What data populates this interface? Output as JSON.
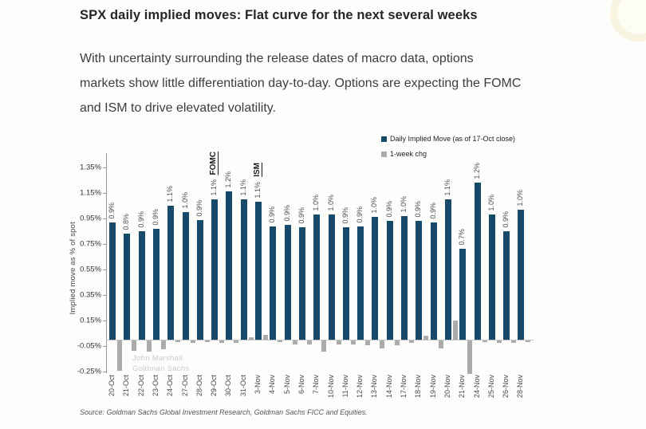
{
  "page": {
    "title": "SPX daily implied moves: Flat curve for the next several weeks",
    "paragraph_lines": [
      "With uncertainty surrounding the release dates of macro data, options",
      "markets show little differentiation day-to-day. Options are expecting the FOMC",
      "and ISM to drive elevated volatility."
    ]
  },
  "chart_data": {
    "type": "bar",
    "title": "",
    "xlabel": "",
    "ylabel": "Implied move as % of spot",
    "ylim": [
      -0.3,
      1.45
    ],
    "yticks": [
      "1.35%",
      "1.15%",
      "0.95%",
      "0.75%",
      "0.55%",
      "0.35%",
      "0.15%",
      "-0.05%",
      "-0.25%"
    ],
    "ytick_values": [
      1.35,
      1.15,
      0.95,
      0.75,
      0.55,
      0.35,
      0.15,
      -0.05,
      -0.25
    ],
    "grid": false,
    "legend_position": "top-right",
    "categories": [
      "20-Oct",
      "21-Oct",
      "22-Oct",
      "23-Oct",
      "24-Oct",
      "27-Oct",
      "28-Oct",
      "29-Oct",
      "30-Oct",
      "31-Oct",
      "3-Nov",
      "4-Nov",
      "5-Nov",
      "6-Nov",
      "7-Nov",
      "10-Nov",
      "11-Nov",
      "12-Nov",
      "13-Nov",
      "14-Nov",
      "17-Nov",
      "18-Nov",
      "19-Nov",
      "20-Nov",
      "21-Nov",
      "24-Nov",
      "25-Nov",
      "26-Nov",
      "28-Nov"
    ],
    "series": [
      {
        "name": "Daily Implied Move (as of 17-Oct close)",
        "color": "#17496B",
        "values": [
          0.92,
          0.83,
          0.85,
          0.87,
          1.05,
          1.0,
          0.94,
          1.1,
          1.16,
          1.1,
          1.08,
          0.89,
          0.9,
          0.88,
          0.98,
          0.98,
          0.88,
          0.89,
          0.96,
          0.93,
          0.97,
          0.93,
          0.92,
          1.1,
          0.71,
          1.23,
          0.98,
          0.85,
          1.02
        ],
        "labels": [
          "0.9%",
          "0.8%",
          "0.9%",
          "0.9%",
          "1.1%",
          "1.0%",
          "0.9%",
          "1.1%",
          "1.2%",
          "1.1%",
          "1.1%",
          "0.9%",
          "0.9%",
          "0.9%",
          "1.0%",
          "1.0%",
          "0.9%",
          "0.9%",
          "1.0%",
          "0.9%",
          "1.0%",
          "0.9%",
          "0.9%",
          "1.1%",
          "0.7%",
          "1.2%",
          "1.0%",
          "0.9%",
          "1.0%"
        ]
      },
      {
        "name": "1-week chg",
        "color": "#ABABAB",
        "values": [
          -0.24,
          -0.08,
          -0.09,
          -0.07,
          -0.01,
          -0.02,
          -0.01,
          -0.02,
          -0.02,
          0.02,
          0.04,
          -0.01,
          -0.03,
          -0.03,
          -0.09,
          -0.03,
          -0.03,
          -0.04,
          -0.06,
          -0.04,
          -0.02,
          0.03,
          -0.06,
          0.15,
          -0.26,
          -0.01,
          -0.02,
          -0.02,
          -0.01
        ]
      }
    ],
    "annotations": [
      {
        "text": "FOMC",
        "category": "29-Oct"
      },
      {
        "text": "ISM",
        "category": "3-Nov"
      }
    ],
    "watermark_lines": [
      "John Marshall",
      "Goldman Sachs"
    ],
    "source": "Source: Goldman Sachs Global Investment Research, Goldman Sachs FICC and Equities."
  }
}
